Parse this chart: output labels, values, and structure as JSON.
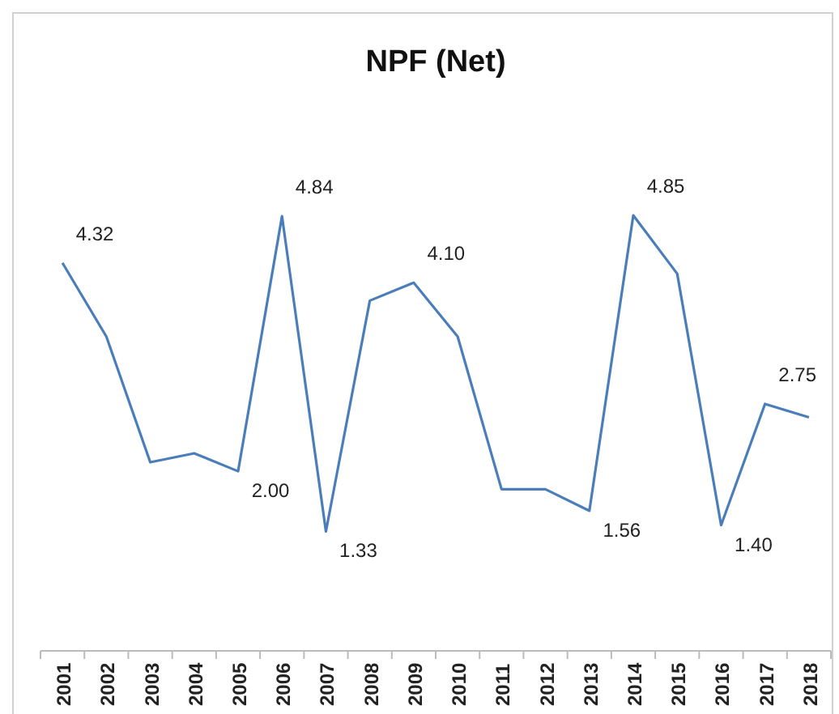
{
  "chart_data": {
    "type": "line",
    "title": "NPF (Net)",
    "categories": [
      "2001",
      "2002",
      "2003",
      "2004",
      "2005",
      "2006",
      "2007",
      "2008",
      "2009",
      "2010",
      "2011",
      "2012",
      "2013",
      "2014",
      "2015",
      "2016",
      "2017",
      "2018"
    ],
    "series": [
      {
        "color": "#4a7ebb",
        "values": [
          4.32,
          3.5,
          2.1,
          2.2,
          2.0,
          4.84,
          1.33,
          3.9,
          4.1,
          3.5,
          1.8,
          1.8,
          1.56,
          4.85,
          4.2,
          1.4,
          2.75,
          2.6
        ],
        "value_labels": [
          "4.32",
          null,
          null,
          null,
          "2.00",
          "4.84",
          "1.33",
          null,
          "4.10",
          null,
          null,
          null,
          "1.56",
          "4.85",
          null,
          "1.40",
          "2.75",
          null
        ]
      }
    ],
    "tick_labels": "x",
    "grid": false,
    "marker": "none",
    "line_style": "solid"
  }
}
